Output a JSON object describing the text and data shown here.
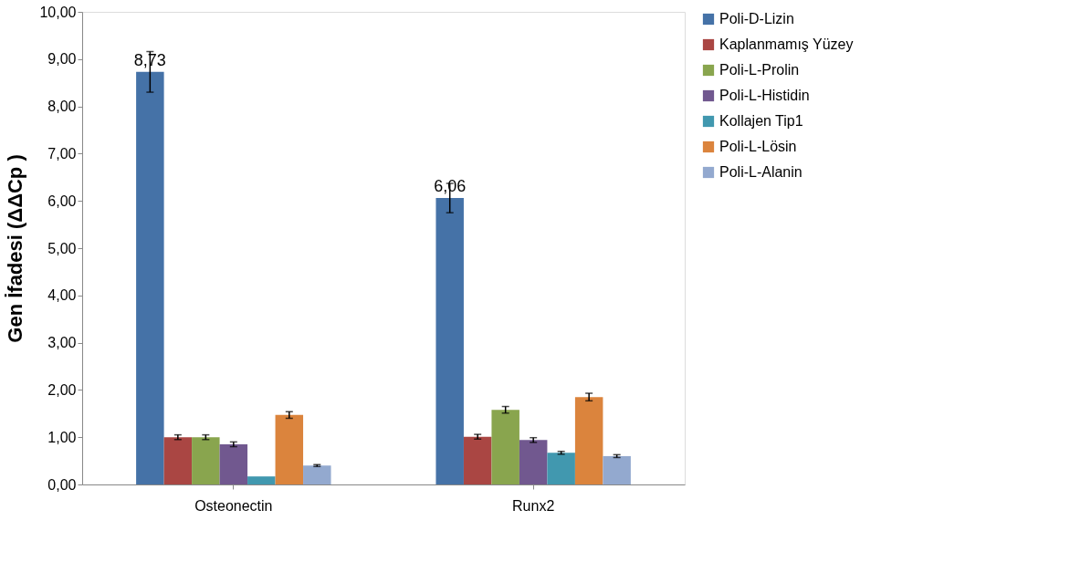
{
  "chart_data": {
    "type": "bar",
    "ylabel": "Gen İfadesi (ΔΔCp )",
    "categories": [
      "Osteonectin",
      "Runx2"
    ],
    "series": [
      {
        "name": "Poli-D-Lizin",
        "color": "#4572a7",
        "values": [
          8.73,
          6.06
        ],
        "errors": [
          0.43,
          0.31
        ],
        "value_labels": [
          "8,73",
          "6,06"
        ]
      },
      {
        "name": "Kaplanmamış Yüzey",
        "color": "#aa4643",
        "values": [
          1.0,
          1.01
        ],
        "errors": [
          0.05,
          0.05
        ]
      },
      {
        "name": "Poli-L-Prolin",
        "color": "#89a54e",
        "values": [
          1.0,
          1.58
        ],
        "errors": [
          0.05,
          0.07
        ]
      },
      {
        "name": "Poli-L-Histidin",
        "color": "#71588f",
        "values": [
          0.85,
          0.94
        ],
        "errors": [
          0.05,
          0.05
        ]
      },
      {
        "name": "Kollajen Tip1",
        "color": "#4198af",
        "values": [
          0.17,
          0.67
        ],
        "errors": [
          null,
          0.03
        ]
      },
      {
        "name": "Poli-L-Lösin",
        "color": "#db843d",
        "values": [
          1.47,
          1.85
        ],
        "errors": [
          0.07,
          0.08
        ]
      },
      {
        "name": "Poli-L-Alanin",
        "color": "#93a9cf",
        "values": [
          0.4,
          0.6
        ],
        "errors": [
          0.02,
          0.03
        ]
      }
    ],
    "ylim": [
      0,
      10
    ],
    "yticks": [
      {
        "value": 0,
        "label": "0,00"
      },
      {
        "value": 1,
        "label": "1,00"
      },
      {
        "value": 2,
        "label": "2,00"
      },
      {
        "value": 3,
        "label": "3,00"
      },
      {
        "value": 4,
        "label": "4,00"
      },
      {
        "value": 5,
        "label": "5,00"
      },
      {
        "value": 6,
        "label": "6,00"
      },
      {
        "value": 7,
        "label": "7,00"
      },
      {
        "value": 8,
        "label": "8,00"
      },
      {
        "value": 9,
        "label": "9,00"
      },
      {
        "value": 10,
        "label": "10,00"
      }
    ],
    "grid": false,
    "legend": "right"
  }
}
